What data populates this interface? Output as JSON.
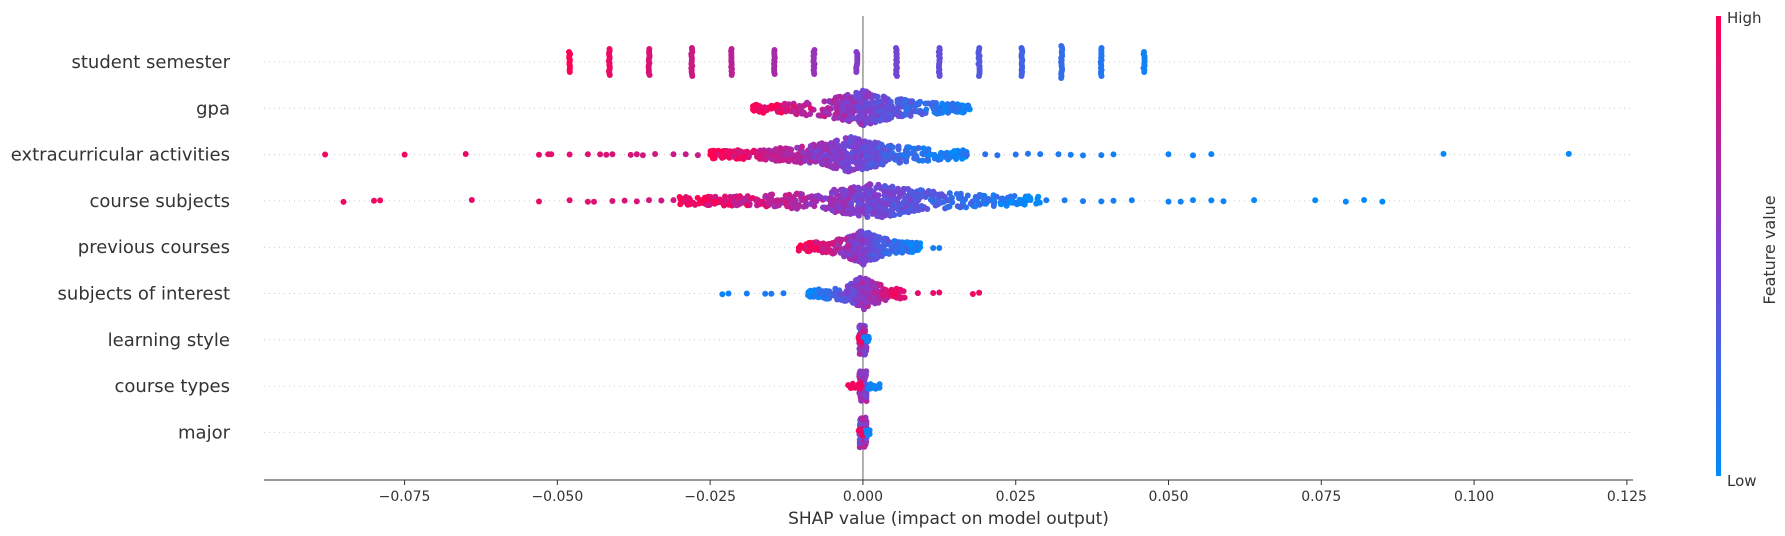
{
  "chart_data": {
    "type": "scatter",
    "subtype": "shap-beeswarm",
    "xlabel": "SHAP value (impact on model output)",
    "xlim": [
      -0.098,
      0.126
    ],
    "xticks": [
      -0.075,
      -0.05,
      -0.025,
      0.0,
      0.025,
      0.05,
      0.075,
      0.1,
      0.125
    ],
    "xtick_labels": [
      "−0.075",
      "−0.050",
      "−0.025",
      "0.000",
      "0.025",
      "0.050",
      "0.075",
      "0.100",
      "0.125"
    ],
    "colorbar": {
      "title": "Feature value",
      "high_label": "High",
      "low_label": "Low",
      "high_color": "#ff0052",
      "low_color": "#008bfb",
      "mid_color": "#7e3fd0"
    },
    "grid": false,
    "features": [
      {
        "name": "student semester",
        "kind": "discrete",
        "points": [
          [
            -0.048,
            1
          ],
          [
            -0.0415,
            0.93
          ],
          [
            -0.035,
            0.86
          ],
          [
            -0.028,
            0.8
          ],
          [
            -0.0215,
            0.73
          ],
          [
            -0.0145,
            0.66
          ],
          [
            -0.008,
            0.6
          ],
          [
            -0.001,
            0.53
          ],
          [
            0.0055,
            0.46
          ],
          [
            0.0125,
            0.4
          ],
          [
            0.019,
            0.33
          ],
          [
            0.026,
            0.26
          ],
          [
            0.0325,
            0.2
          ],
          [
            0.039,
            0.13
          ],
          [
            0.046,
            0.06
          ]
        ],
        "spread": [
          0.6,
          0.9,
          0.9,
          1.0,
          0.9,
          0.8,
          0.8,
          0.6,
          1.0,
          1.0,
          1.0,
          1.0,
          1.2,
          1.0,
          0.6
        ]
      },
      {
        "name": "gpa",
        "kind": "continuous",
        "range": [
          -0.018,
          0.018
        ],
        "color": "high-left",
        "density": 0.9
      },
      {
        "name": "extracurricular activities",
        "kind": "points",
        "outliers": [
          [
            -0.088,
            0.95
          ],
          [
            -0.075,
            0.93
          ],
          [
            -0.065,
            0.92
          ],
          [
            -0.053,
            0.9
          ],
          [
            -0.0515,
            0.9
          ],
          [
            -0.051,
            0.89
          ],
          [
            -0.048,
            0.88
          ],
          [
            -0.045,
            0.87
          ],
          [
            -0.043,
            0.86
          ],
          [
            -0.042,
            0.85
          ],
          [
            -0.041,
            0.85
          ],
          [
            -0.038,
            0.84
          ],
          [
            -0.037,
            0.83
          ],
          [
            -0.036,
            0.82
          ],
          [
            -0.034,
            0.81
          ],
          [
            -0.031,
            0.79
          ],
          [
            -0.029,
            0.78
          ],
          [
            -0.027,
            0.77
          ],
          [
            0.017,
            0.2
          ],
          [
            0.02,
            0.18
          ],
          [
            0.022,
            0.16
          ],
          [
            0.025,
            0.15
          ],
          [
            0.027,
            0.14
          ],
          [
            0.029,
            0.12
          ],
          [
            0.032,
            0.11
          ],
          [
            0.034,
            0.1
          ],
          [
            0.036,
            0.09
          ],
          [
            0.039,
            0.08
          ],
          [
            0.041,
            0.07
          ],
          [
            0.05,
            0.05
          ],
          [
            0.054,
            0.05
          ],
          [
            0.057,
            0.04
          ],
          [
            0.095,
            0.02
          ],
          [
            0.1155,
            0.01
          ]
        ],
        "dense_range": [
          -0.025,
          0.017
        ],
        "center": -0.002
      },
      {
        "name": "course subjects",
        "kind": "points",
        "outliers": [
          [
            -0.085,
            0.95
          ],
          [
            -0.08,
            0.94
          ],
          [
            -0.079,
            0.94
          ],
          [
            -0.064,
            0.92
          ],
          [
            -0.053,
            0.9
          ],
          [
            -0.048,
            0.89
          ],
          [
            -0.045,
            0.88
          ],
          [
            -0.044,
            0.87
          ],
          [
            -0.041,
            0.86
          ],
          [
            -0.039,
            0.85
          ],
          [
            -0.037,
            0.84
          ],
          [
            -0.035,
            0.83
          ],
          [
            -0.033,
            0.82
          ],
          [
            -0.031,
            0.81
          ],
          [
            0.03,
            0.12
          ],
          [
            0.033,
            0.11
          ],
          [
            0.036,
            0.1
          ],
          [
            0.039,
            0.09
          ],
          [
            0.041,
            0.08
          ],
          [
            0.044,
            0.07
          ],
          [
            0.05,
            0.06
          ],
          [
            0.052,
            0.05
          ],
          [
            0.054,
            0.05
          ],
          [
            0.057,
            0.04
          ],
          [
            0.059,
            0.04
          ],
          [
            0.064,
            0.03
          ],
          [
            0.074,
            0.02
          ],
          [
            0.079,
            0.02
          ],
          [
            0.082,
            0.01
          ],
          [
            0.085,
            0.01
          ]
        ],
        "dense_range": [
          -0.03,
          0.029
        ],
        "center": 0.002
      },
      {
        "name": "previous courses",
        "kind": "continuous",
        "range": [
          -0.0105,
          0.0095
        ],
        "color": "high-left",
        "density": 0.8,
        "outliers": [
          [
            0.0115,
            0.1
          ],
          [
            0.0125,
            0.08
          ]
        ]
      },
      {
        "name": "subjects of interest",
        "kind": "continuous",
        "range": [
          -0.009,
          0.007
        ],
        "color": "low-left",
        "density": 0.5,
        "outliers": [
          [
            -0.023,
            0.05
          ],
          [
            -0.022,
            0.06
          ],
          [
            -0.019,
            0.08
          ],
          [
            -0.016,
            0.1
          ],
          [
            -0.015,
            0.11
          ],
          [
            -0.013,
            0.12
          ],
          [
            0.009,
            0.88
          ],
          [
            0.0115,
            0.9
          ],
          [
            0.0125,
            0.92
          ],
          [
            0.018,
            0.95
          ],
          [
            0.019,
            0.95
          ]
        ]
      },
      {
        "name": "learning style",
        "kind": "narrow",
        "range": [
          -0.0008,
          0.001
        ]
      },
      {
        "name": "course types",
        "kind": "narrow",
        "range": [
          -0.0028,
          0.003
        ]
      },
      {
        "name": "major",
        "kind": "narrow",
        "range": [
          -0.0008,
          0.0012
        ]
      }
    ]
  }
}
